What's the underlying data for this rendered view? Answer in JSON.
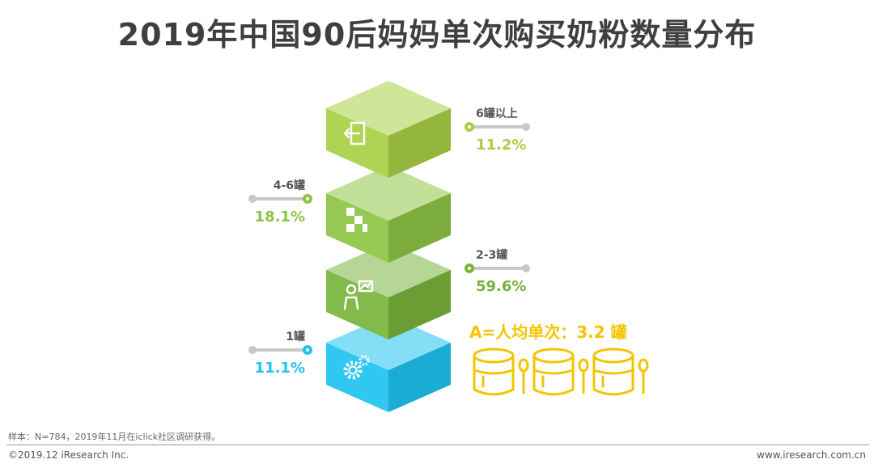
{
  "title": "2019年中国90后妈妈单次购买奶粉数量分布",
  "chart_data": {
    "type": "bar",
    "title": "2019年中国90后妈妈单次购买奶粉数量分布",
    "categories": [
      "6罐以上",
      "4-6罐",
      "2-3罐",
      "1罐"
    ],
    "value_labels": [
      "11.2%",
      "18.1%",
      "59.6%",
      "11.1%"
    ],
    "values": [
      11.2,
      18.1,
      59.6,
      11.1
    ],
    "unit": "%",
    "annotation": "A=人均单次：3.2 罐",
    "colors": {
      "6罐以上": "#a8cf44",
      "4-6罐": "#8cc444",
      "2-3罐": "#78b43c",
      "1罐": "#1ec3ef"
    },
    "accent": "#f5c400"
  },
  "footer": {
    "note": "样本：N=784，2019年11月在iclick社区调研获得。",
    "copyright": "©2019.12 iResearch Inc.",
    "website": "www.iresearch.com.cn"
  }
}
